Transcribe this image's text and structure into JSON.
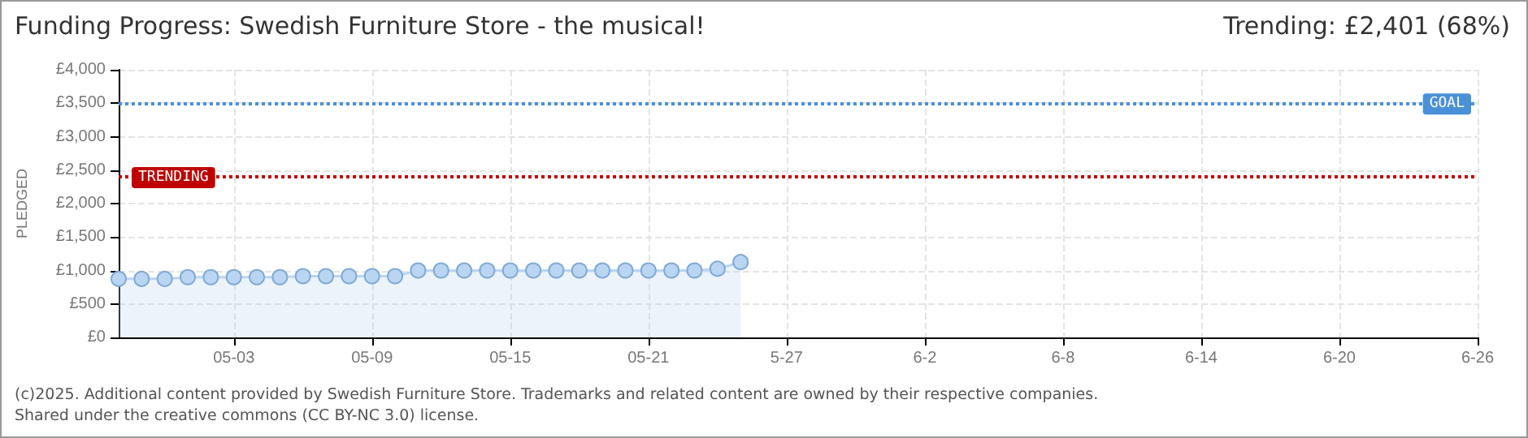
{
  "chart_data": {
    "type": "area",
    "title": "Funding Progress: Swedish Furniture Store - the musical!",
    "subtitle": "Trending:  £2,401 (68%)",
    "ylabel": "PLEDGED",
    "x": [
      "--04-28",
      "--04-29",
      "--04-30",
      "--05-01",
      "--05-02",
      "--05-03",
      "--05-04",
      "--05-05",
      "--05-06",
      "--05-07",
      "--05-08",
      "--05-09",
      "--05-10",
      "--05-11",
      "--05-12",
      "--05-13",
      "--05-14",
      "--05-15",
      "--05-16",
      "--05-17",
      "--05-18",
      "--05-19",
      "--05-20",
      "--05-21",
      "--05-22",
      "--05-23",
      "--05-24",
      "--05-25"
    ],
    "series": [
      {
        "color": "#b9d5f2",
        "values": [
          875,
          875,
          875,
          900,
          900,
          900,
          900,
          900,
          915,
          915,
          915,
          915,
          915,
          1000,
          1000,
          1000,
          1000,
          1000,
          1000,
          1000,
          1000,
          1000,
          1000,
          1000,
          1000,
          1000,
          1025,
          1125
        ]
      }
    ],
    "xlim": [
      "--04-28",
      "--06-26"
    ],
    "xticks": [
      {
        "value": "--05-03",
        "label": "05-03"
      },
      {
        "value": "--05-09",
        "label": "05-09"
      },
      {
        "value": "--05-15",
        "label": "05-15"
      },
      {
        "value": "--05-21",
        "label": "05-21"
      },
      {
        "value": "--05-27",
        "label": "5-27"
      },
      {
        "value": "--06-02",
        "label": "6-2"
      },
      {
        "value": "--06-08",
        "label": "6-8"
      },
      {
        "value": "--06-14",
        "label": "6-14"
      },
      {
        "value": "--06-20",
        "label": "6-20"
      },
      {
        "value": "--06-26",
        "label": "6-26"
      }
    ],
    "ylim": [
      0,
      4000
    ],
    "yticks": [
      {
        "value": 0,
        "label": "£0"
      },
      {
        "value": 500,
        "label": "£500"
      },
      {
        "value": 1000,
        "label": "£1,000"
      },
      {
        "value": 1500,
        "label": "£1,500"
      },
      {
        "value": 2000,
        "label": "£2,000"
      },
      {
        "value": 2500,
        "label": "£2,500"
      },
      {
        "value": 3000,
        "label": "£3,000"
      },
      {
        "value": 3500,
        "label": "£3,500"
      },
      {
        "value": 4000,
        "label": "£4,000"
      }
    ],
    "ref_lines": [
      {
        "axis": "y",
        "value": 3500,
        "label": "GOAL",
        "color": "#4a90d9",
        "line_style": "dotted"
      },
      {
        "axis": "y",
        "value": 2401,
        "label": "TRENDING",
        "color": "#c00000",
        "line_style": "dotted"
      }
    ],
    "annotations": [
      "(c)2025. Additional content provided by Swedish Furniture Store. Trademarks and related content are owned by their respective companies.",
      "Shared under the creative commons (CC BY-NC 3.0) license."
    ],
    "grid": true,
    "marker": "circle"
  }
}
